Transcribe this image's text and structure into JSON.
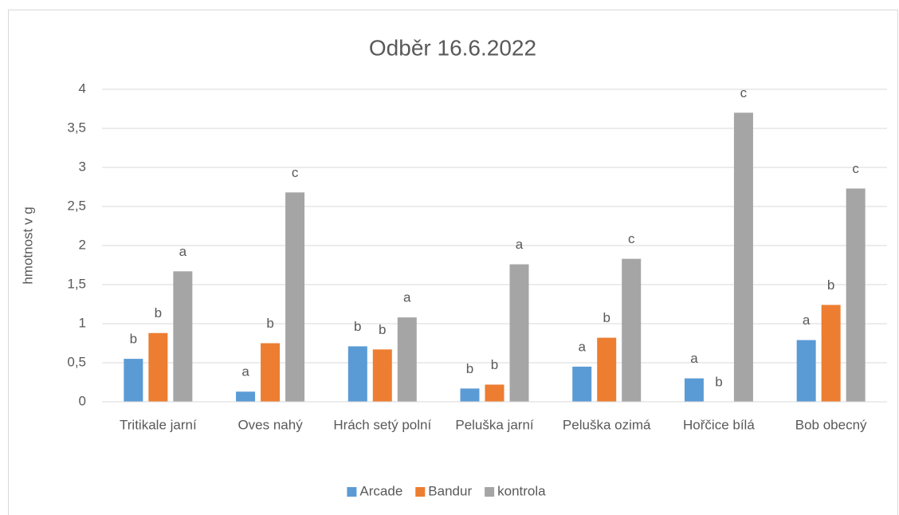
{
  "chart_data": {
    "type": "bar",
    "title": "Odběr 16.6.2022",
    "y_label": "hmotnost v g",
    "categories": [
      "Tritikale jarní",
      "Oves nahý",
      "Hrách setý polní",
      "Peluška jarní",
      "Peluška ozimá",
      "Hořčice bílá",
      "Bob obecný"
    ],
    "series": [
      {
        "name": "Arcade",
        "color": "#5b9bd5",
        "values": [
          0.55,
          0.13,
          0.71,
          0.17,
          0.45,
          0.3,
          0.79
        ],
        "labels": [
          "b",
          "a",
          "b",
          "b",
          "a",
          "a",
          "a"
        ]
      },
      {
        "name": "Bandur",
        "color": "#ed7d31",
        "values": [
          0.88,
          0.75,
          0.67,
          0.22,
          0.82,
          0,
          1.24
        ],
        "labels": [
          "b",
          "b",
          "b",
          "b",
          "b",
          "b",
          "b"
        ]
      },
      {
        "name": "kontrola",
        "color": "#a5a5a5",
        "values": [
          1.67,
          2.68,
          1.08,
          1.76,
          1.83,
          3.7,
          2.73
        ],
        "labels": [
          "a",
          "c",
          "a",
          "a",
          "c",
          "c",
          "c"
        ]
      }
    ],
    "ylim": [
      0,
      4
    ],
    "yticks": [
      0,
      {
        "value": 0.5,
        "label": "0,5"
      },
      1,
      {
        "value": 1.5,
        "label": "1,5"
      },
      2,
      {
        "value": 2.5,
        "label": "2,5"
      },
      3,
      {
        "value": 3.5,
        "label": "3,5"
      },
      4
    ],
    "grid": true,
    "legend": "bottom"
  }
}
